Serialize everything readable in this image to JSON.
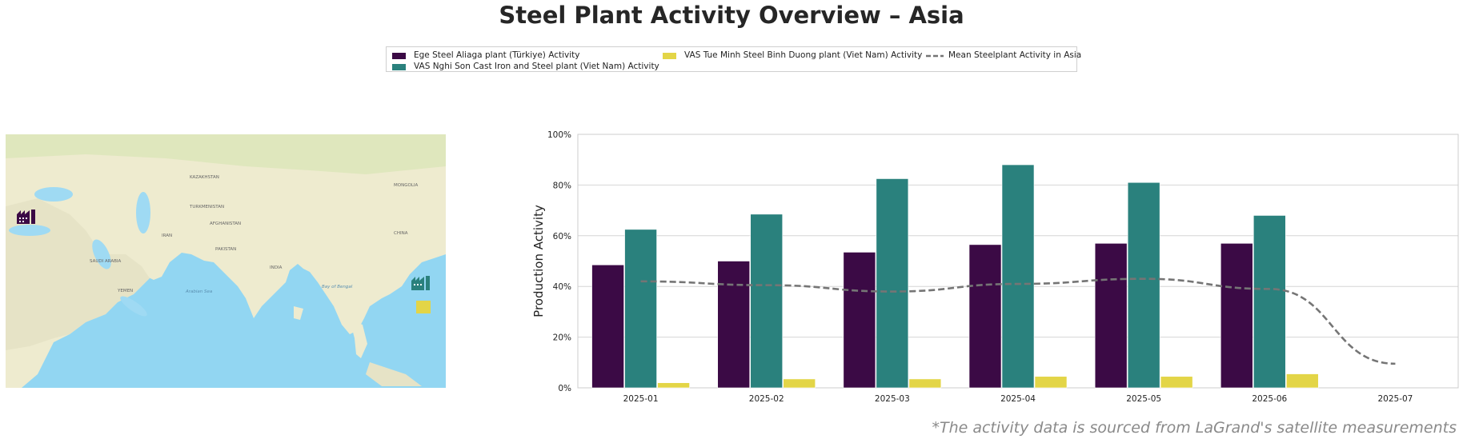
{
  "page": {
    "title": "Steel Plant Activity Overview – Asia"
  },
  "footnote": "*The activity data is sourced from LaGrand's satellite measurements",
  "colors": {
    "ege": "#3b0a45",
    "nghi_son": "#2a817d",
    "tue_minh": "#e3d547",
    "mean": "#757575"
  },
  "map": {
    "labels": [
      "KAZAKHSTAN",
      "TURKMENISTAN",
      "AFGHANISTAN",
      "PAKISTAN",
      "INDIA",
      "CHINA",
      "MONGOLIA",
      "IRAN",
      "SAUDI ARABIA",
      "YEMEN",
      "Arabian Sea",
      "Bay of Bengal"
    ],
    "markers": [
      {
        "name": "Ege Steel Aliaga plant (Türkiye)",
        "icon": "factory-icon",
        "color": "#3b0a45"
      },
      {
        "name": "VAS Nghi Son Cast Iron and Steel plant (Viet Nam)",
        "icon": "factory-icon",
        "color": "#2a817d"
      },
      {
        "name": "VAS Tue Minh Steel Binh Duong plant (Viet Nam)",
        "icon": "square-marker",
        "color": "#e3d547"
      }
    ]
  },
  "chart_data": {
    "type": "bar",
    "title": "",
    "xlabel": "",
    "ylabel": "Production Activity",
    "categories": [
      "2025-01",
      "2025-02",
      "2025-03",
      "2025-04",
      "2025-05",
      "2025-06",
      "2025-07"
    ],
    "yticks": [
      "0%",
      "20%",
      "40%",
      "60%",
      "80%",
      "100%"
    ],
    "ylim": [
      0,
      100
    ],
    "grid": true,
    "legend_position": "top-center",
    "series": [
      {
        "name": "Ege Steel Aliaga plant (Türkiye) Activity",
        "kind": "bar",
        "color": "#3b0a45",
        "values": [
          48.5,
          50,
          53.5,
          56.5,
          57,
          57,
          null
        ]
      },
      {
        "name": "VAS Nghi Son Cast Iron and Steel plant (Viet Nam) Activity",
        "kind": "bar",
        "color": "#2a817d",
        "values": [
          62.5,
          68.5,
          82.5,
          88,
          81,
          68,
          null
        ]
      },
      {
        "name": "VAS Tue Minh Steel Binh Duong plant (Viet Nam) Activity",
        "kind": "bar",
        "color": "#e3d547",
        "values": [
          2,
          3.5,
          3.5,
          4.5,
          4.5,
          5.5,
          null
        ]
      },
      {
        "name": "Mean Steelplant Activity in Asia",
        "kind": "line",
        "style": "dashed",
        "color": "#757575",
        "values": [
          42,
          40.5,
          38,
          41,
          43,
          39,
          9.5
        ]
      }
    ]
  }
}
